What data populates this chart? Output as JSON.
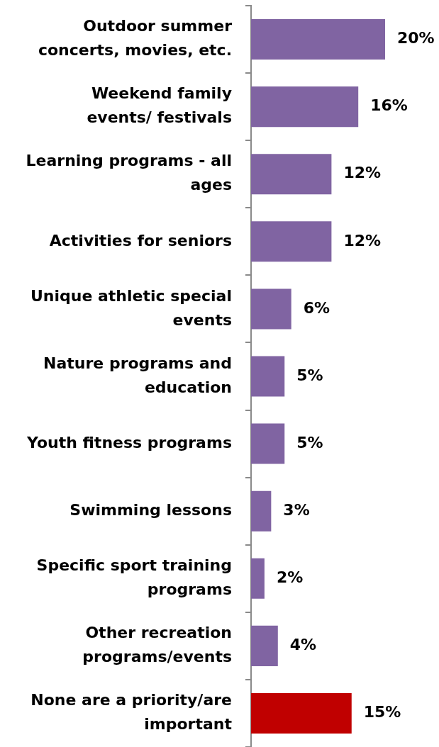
{
  "chart_data": {
    "type": "bar",
    "orientation": "horizontal",
    "categories": [
      "Outdoor summer concerts, movies, etc.",
      "Weekend family events/ festivals",
      "Learning programs - all ages",
      "Activities for seniors",
      "Unique athletic special events",
      "Nature programs and education",
      "Youth fitness programs",
      "Swimming lessons",
      "Specific sport training programs",
      "Other recreation programs/events",
      "None are a priority/are important"
    ],
    "values": [
      20,
      16,
      12,
      12,
      6,
      5,
      5,
      3,
      2,
      4,
      15
    ],
    "colors": [
      "#8064a2",
      "#8064a2",
      "#8064a2",
      "#8064a2",
      "#8064a2",
      "#8064a2",
      "#8064a2",
      "#8064a2",
      "#8064a2",
      "#8064a2",
      "#c00000"
    ],
    "value_labels": [
      "20%",
      "16%",
      "12%",
      "12%",
      "6%",
      "5%",
      "5%",
      "3%",
      "2%",
      "4%",
      "15%"
    ]
  }
}
